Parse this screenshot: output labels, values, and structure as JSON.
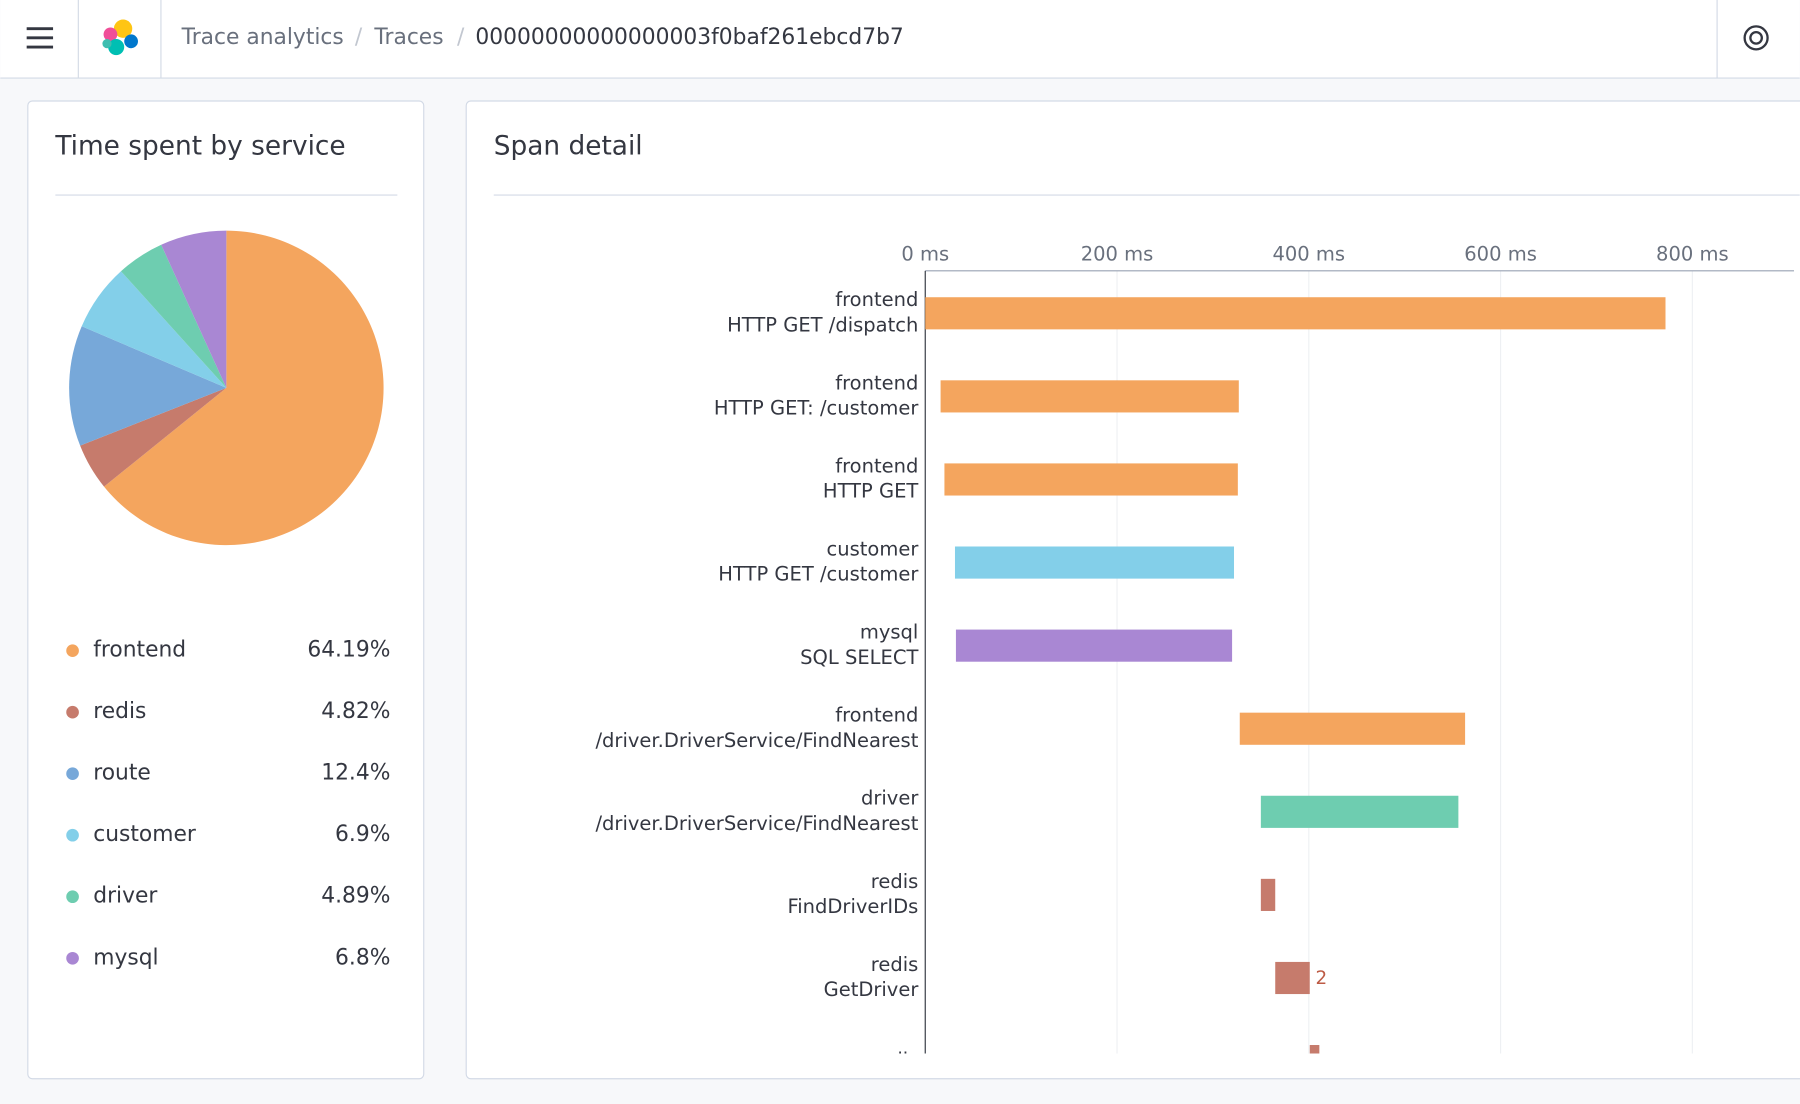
{
  "header": {
    "breadcrumbs": [
      "Trace analytics",
      "Traces",
      "00000000000000003f0baf261ebcd7b7"
    ]
  },
  "chart_data": [
    {
      "type": "pie",
      "title": "Time spent by service",
      "categories": [
        "frontend",
        "redis",
        "route",
        "customer",
        "driver",
        "mysql"
      ],
      "values": [
        64.19,
        4.82,
        12.4,
        6.9,
        4.89,
        6.8
      ],
      "value_labels": [
        "64.19%",
        "4.82%",
        "12.4%",
        "6.9%",
        "4.89%",
        "6.8%"
      ],
      "colors": [
        "#f4a55e",
        "#c67b6c",
        "#77a8d9",
        "#83cfe9",
        "#6ecdb0",
        "#a987d3"
      ]
    },
    {
      "type": "timeline",
      "title": "Span detail",
      "spans": [
        {
          "service": "frontend",
          "operation": "HTTP GET /dispatch",
          "start": 0,
          "end": 772,
          "color": "#f4a55e"
        },
        {
          "service": "frontend",
          "operation": "HTTP GET: /customer",
          "start": 16,
          "end": 327,
          "color": "#f4a55e"
        },
        {
          "service": "frontend",
          "operation": "HTTP GET",
          "start": 20,
          "end": 326,
          "color": "#f4a55e"
        },
        {
          "service": "customer",
          "operation": "HTTP GET /customer",
          "start": 31,
          "end": 322,
          "color": "#83cfe9"
        },
        {
          "service": "mysql",
          "operation": "SQL SELECT",
          "start": 32,
          "end": 320,
          "color": "#a987d3"
        },
        {
          "service": "frontend",
          "operation": "/driver.DriverService/FindNearest",
          "start": 328,
          "end": 563,
          "color": "#f4a55e"
        },
        {
          "service": "driver",
          "operation": "/driver.DriverService/FindNearest",
          "start": 350,
          "end": 556,
          "color": "#6ecdb0"
        },
        {
          "service": "redis",
          "operation": "FindDriverIDs",
          "start": 350,
          "end": 365,
          "color": "#c67b6c"
        },
        {
          "service": "redis",
          "operation": "GetDriver",
          "start": 365,
          "end": 401,
          "color": "#c67b6c",
          "badge": 2
        },
        {
          "service": "redis",
          "start": 401,
          "end": 411,
          "color": "#c67b6c"
        }
      ],
      "xlim": [
        0,
        906
      ],
      "xticks": [
        {
          "value": 0,
          "label": "0 ms"
        },
        {
          "value": 200,
          "label": "200 ms"
        },
        {
          "value": 400,
          "label": "400 ms"
        },
        {
          "value": 600,
          "label": "600 ms"
        },
        {
          "value": 800,
          "label": "800 ms"
        }
      ],
      "grid": true
    }
  ]
}
